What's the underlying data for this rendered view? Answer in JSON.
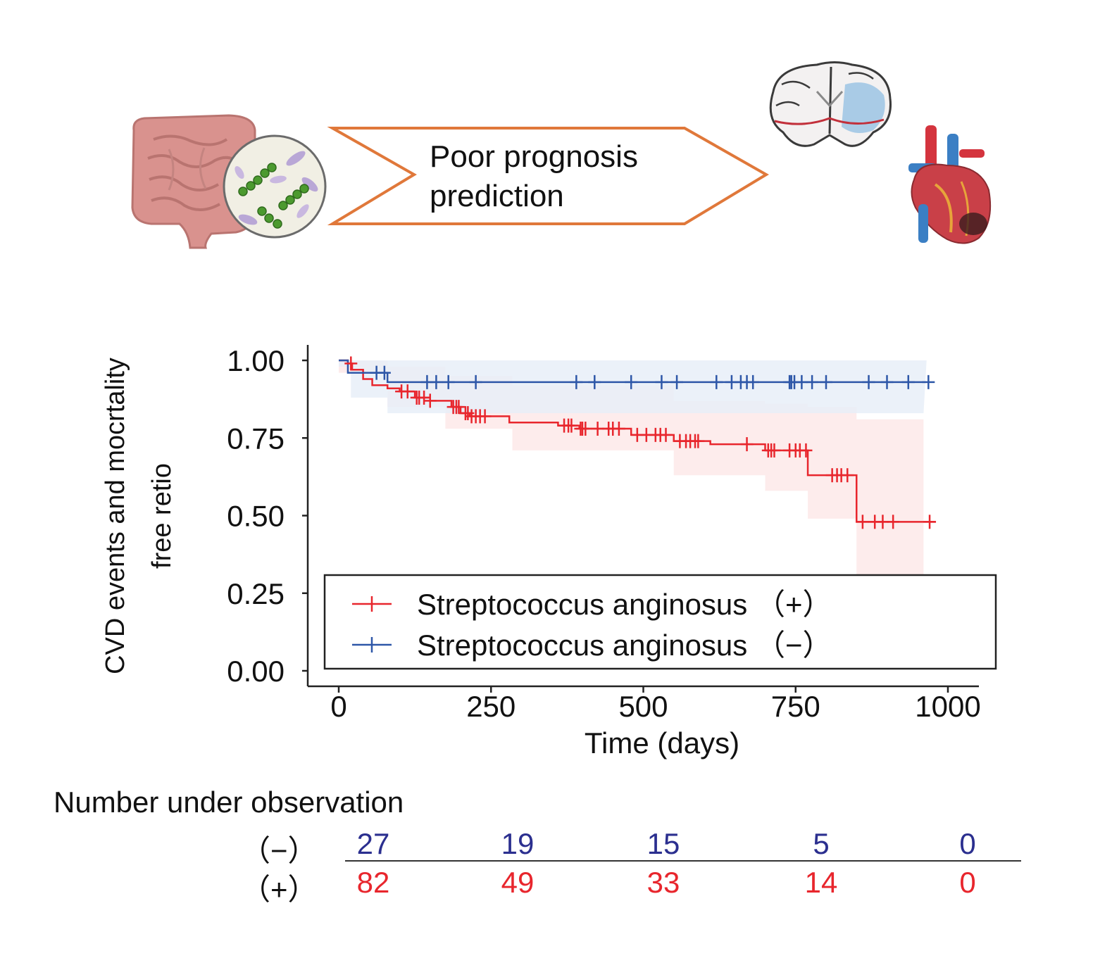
{
  "banner": {
    "line1": "Poor prognosis",
    "line2": "prediction"
  },
  "colors": {
    "positive": "#e8262d",
    "negative": "#2e57a8",
    "arrow": "#e0783a",
    "positive_band": "#fde9e9",
    "negative_band": "#e8eef8",
    "risk_negative": "#2b2f8f",
    "risk_positive": "#e8262d"
  },
  "icons": [
    "intestine-icon",
    "bacteria-icon",
    "brain-icon",
    "heart-icon"
  ],
  "chart_data": {
    "type": "line",
    "subtype": "kaplan-meier",
    "title": "",
    "xlabel": "Time (days)",
    "ylabel_line1": "CVD events and mocrtality",
    "ylabel_line2": "free retio",
    "xlim": [
      0,
      1000
    ],
    "ylim": [
      0,
      1.0
    ],
    "xticks": [
      0,
      250,
      500,
      750,
      1000
    ],
    "xtick_labels": [
      "0",
      "250",
      "500",
      "750",
      "1000"
    ],
    "yticks": [
      0,
      0.25,
      0.5,
      0.75,
      1.0
    ],
    "ytick_labels": [
      "0.00",
      "0.25",
      "0.50",
      "0.75",
      "1.00"
    ],
    "legend_position": "bottom-right",
    "series": [
      {
        "name": "Streptococcus anginosus (+)",
        "legend_label": "Streptococcus anginosus （+）",
        "color_key": "positive",
        "steps": [
          [
            0,
            1.0
          ],
          [
            15,
            0.99
          ],
          [
            22,
            0.97
          ],
          [
            40,
            0.94
          ],
          [
            55,
            0.92
          ],
          [
            80,
            0.91
          ],
          [
            100,
            0.9
          ],
          [
            125,
            0.88
          ],
          [
            150,
            0.87
          ],
          [
            185,
            0.85
          ],
          [
            200,
            0.83
          ],
          [
            215,
            0.82
          ],
          [
            280,
            0.8
          ],
          [
            360,
            0.79
          ],
          [
            395,
            0.78
          ],
          [
            480,
            0.76
          ],
          [
            550,
            0.74
          ],
          [
            610,
            0.73
          ],
          [
            700,
            0.71
          ],
          [
            770,
            0.63
          ],
          [
            850,
            0.48
          ],
          [
            980,
            0.48
          ]
        ],
        "ci_upper": [
          [
            0,
            1.0
          ],
          [
            80,
            0.98
          ],
          [
            175,
            0.95
          ],
          [
            285,
            0.92
          ],
          [
            550,
            0.87
          ],
          [
            700,
            0.86
          ],
          [
            770,
            0.85
          ],
          [
            850,
            0.81
          ],
          [
            960,
            0.81
          ]
        ],
        "ci_lower": [
          [
            0,
            0.96
          ],
          [
            80,
            0.85
          ],
          [
            175,
            0.78
          ],
          [
            285,
            0.71
          ],
          [
            550,
            0.63
          ],
          [
            700,
            0.58
          ],
          [
            770,
            0.49
          ],
          [
            850,
            0.26
          ],
          [
            960,
            0.26
          ]
        ],
        "censor_x": [
          20,
          103,
          113,
          128,
          132,
          140,
          150,
          188,
          193,
          197,
          208,
          212,
          218,
          225,
          232,
          240,
          370,
          377,
          382,
          397,
          400,
          405,
          425,
          443,
          450,
          460,
          490,
          505,
          520,
          528,
          537,
          560,
          570,
          577,
          585,
          590,
          670,
          705,
          710,
          715,
          740,
          750,
          757,
          767,
          810,
          818,
          825,
          835,
          860,
          880,
          893,
          910,
          970
        ]
      },
      {
        "name": "Streptococcus anginosus (-)",
        "legend_label": "Streptococcus anginosus （−）",
        "color_key": "negative",
        "steps": [
          [
            0,
            1.0
          ],
          [
            15,
            0.96
          ],
          [
            80,
            0.93
          ],
          [
            965,
            0.93
          ]
        ],
        "ci_upper": [
          [
            0,
            1.0
          ],
          [
            965,
            1.0
          ]
        ],
        "ci_lower": [
          [
            0,
            0.98
          ],
          [
            20,
            0.88
          ],
          [
            80,
            0.83
          ],
          [
            960,
            0.83
          ]
        ],
        "censor_x": [
          62,
          75,
          145,
          160,
          180,
          225,
          390,
          420,
          480,
          530,
          555,
          620,
          645,
          660,
          670,
          680,
          740,
          743,
          748,
          760,
          777,
          800,
          870,
          900,
          935,
          968
        ]
      }
    ]
  },
  "risk_table": {
    "title": "Number under observation",
    "rows": [
      {
        "label": "（−）",
        "color_key": "risk_negative",
        "values": [
          "27",
          "19",
          "15",
          "5",
          "0"
        ]
      },
      {
        "label": "（+）",
        "color_key": "risk_positive",
        "values": [
          "82",
          "49",
          "33",
          "14",
          "0"
        ]
      }
    ]
  }
}
